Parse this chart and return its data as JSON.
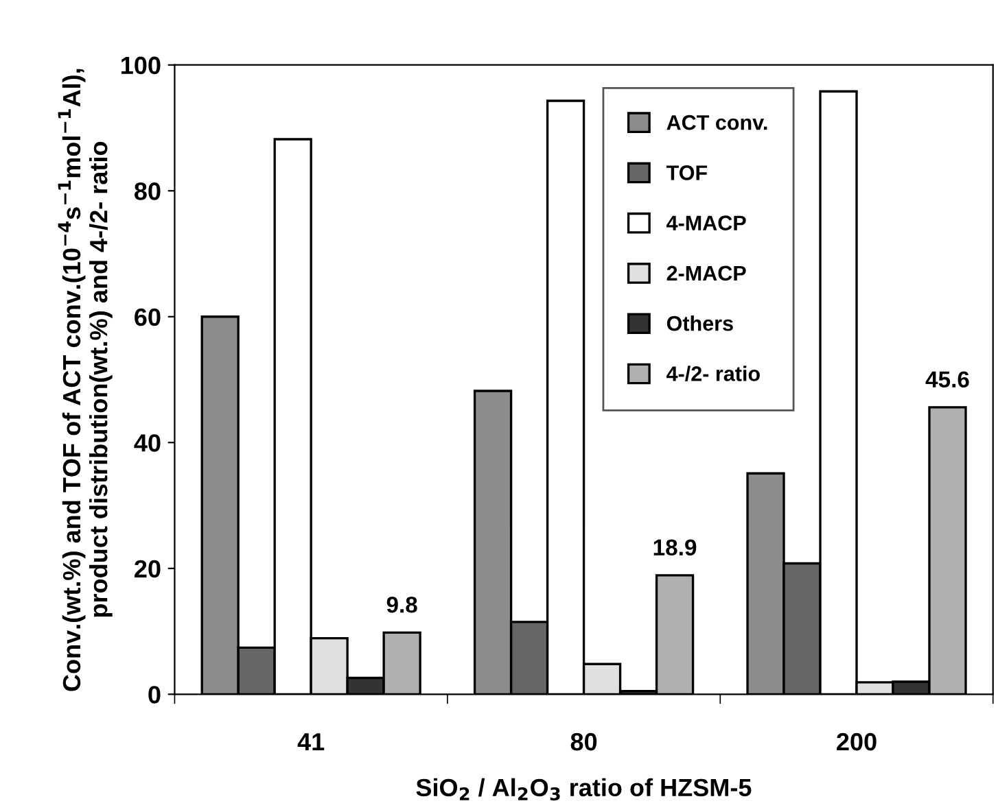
{
  "chart_data": {
    "type": "bar",
    "xlabel": "SiO$_{2}$ / Al$_{2}$O$_{3}$ ratio of HZSM-5",
    "ylabel": "Conv.(wt.%) and TOF of ACT conv.(10$^{−4}$s$^{−1}$mol$^{−1}$Al),\nproduct distribution(wt.%) and 4-/2- ratio",
    "categories": [
      "41",
      "80",
      "200"
    ],
    "series": [
      {
        "name": "ACT conv.",
        "color": "#8c8c8c",
        "values": [
          60.0,
          48.2,
          35.1
        ]
      },
      {
        "name": "TOF",
        "color": "#666666",
        "values": [
          7.4,
          11.5,
          20.8
        ]
      },
      {
        "name": "4-MACP",
        "color": "#ffffff",
        "values": [
          88.2,
          94.3,
          95.8
        ]
      },
      {
        "name": "2-MACP",
        "color": "#e0e0e0",
        "values": [
          8.9,
          4.8,
          1.9
        ]
      },
      {
        "name": "Others",
        "color": "#333333",
        "values": [
          2.6,
          0.5,
          2.0
        ]
      },
      {
        "name": "4-/2- ratio",
        "color": "#b0b0b0",
        "values": [
          9.8,
          18.9,
          45.6
        ],
        "value_labels": [
          "9.8",
          "18.9",
          "45.6"
        ]
      }
    ],
    "ylim": [
      0,
      100
    ],
    "yticks": [
      0,
      20,
      40,
      60,
      80,
      100
    ],
    "legend": "top",
    "grid": false
  }
}
